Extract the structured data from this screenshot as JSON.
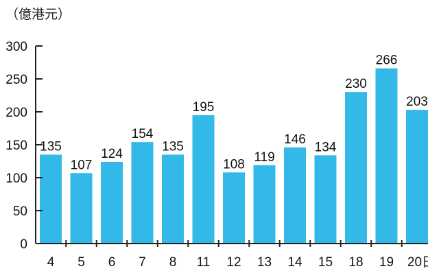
{
  "chart_data": {
    "type": "bar",
    "unit_label": "（億港元）",
    "x_suffix": "日",
    "categories": [
      "4",
      "5",
      "6",
      "7",
      "8",
      "11",
      "12",
      "13",
      "14",
      "15",
      "18",
      "19",
      "20"
    ],
    "values": [
      135,
      107,
      124,
      154,
      135,
      195,
      108,
      119,
      146,
      134,
      230,
      266,
      203
    ],
    "value_labels": [
      "135",
      "107",
      "124",
      "154",
      "135",
      "195",
      "108",
      "119",
      "146",
      "134",
      "230",
      "266",
      "203"
    ],
    "yticks": [
      0,
      50,
      100,
      150,
      200,
      250,
      300
    ],
    "ylim": [
      0,
      300
    ],
    "bar_color": "#33b9e8",
    "axis_color": "#222222",
    "grid": false,
    "legend": false
  }
}
